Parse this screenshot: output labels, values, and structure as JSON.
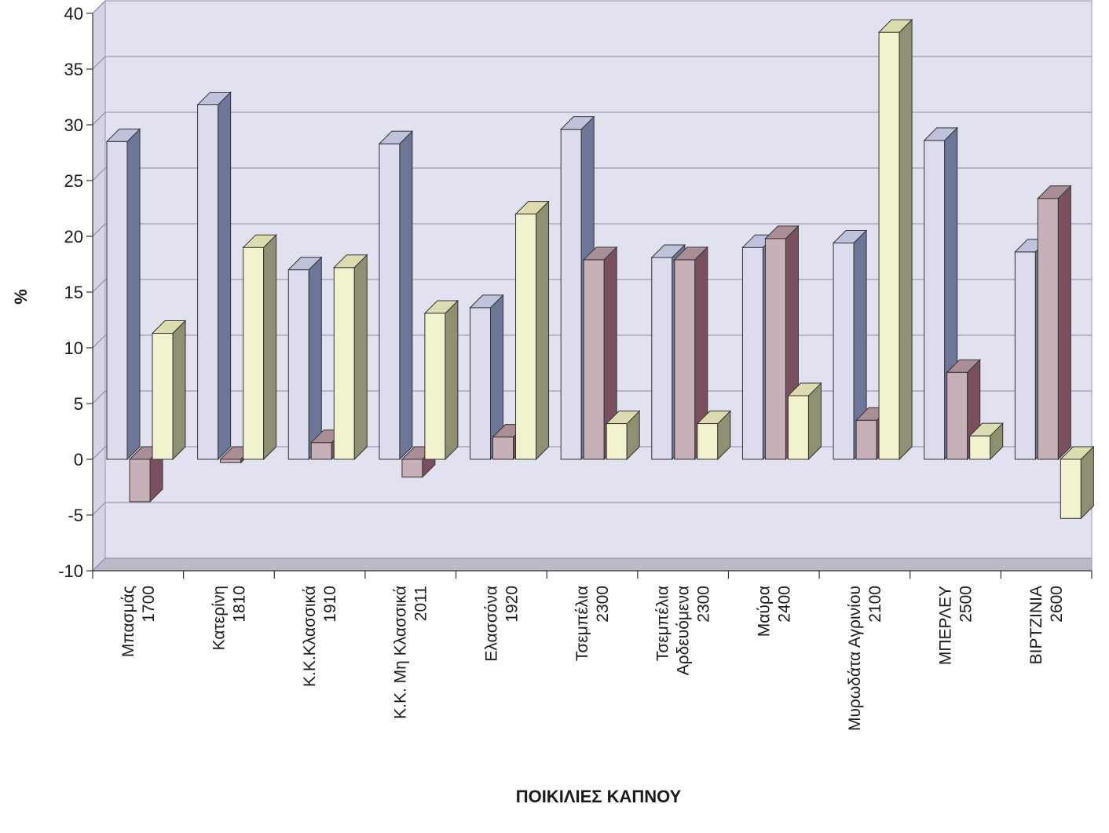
{
  "chart_data": {
    "type": "bar",
    "title": "",
    "xlabel": "ΠΟΙΚΙΛΙΕΣ ΚΑΠΝΟΥ",
    "ylabel": "%",
    "ylim": [
      -10,
      40
    ],
    "yticks": [
      "40",
      "35",
      "30",
      "25",
      "20",
      "15",
      "10",
      "5",
      "0",
      "-5",
      "-10"
    ],
    "grid": true,
    "legend": "none",
    "categories": [
      [
        "Μπασμάς",
        "1700"
      ],
      [
        "Κατερίνη",
        "1810"
      ],
      [
        "Κ.Κ.Κλασσικά",
        "1910"
      ],
      [
        "Κ.Κ. Μη Κλασσικά",
        "2011"
      ],
      [
        "Ελασσόνα",
        "1920"
      ],
      [
        "Τσεμπέλια",
        "2300"
      ],
      [
        "Τσεμπέλια",
        "Αρδευόμενα",
        "2300"
      ],
      [
        "Μαύρα",
        "2400"
      ],
      [
        "Μυρωδάτα Αγρινίου",
        "2100"
      ],
      [
        "ΜΠΕΡΛΕΥ",
        "2500"
      ],
      [
        "ΒΙΡΤΖΙΝΙΑ",
        "2600"
      ]
    ],
    "series": [
      {
        "values": [
          28.5,
          31.8,
          17.0,
          28.3,
          13.6,
          29.6,
          18.1,
          19.0,
          19.4,
          28.6,
          18.6
        ]
      },
      {
        "values": [
          -3.8,
          -0.3,
          1.5,
          -1.6,
          2.0,
          17.9,
          17.9,
          19.8,
          3.5,
          7.8,
          23.4
        ]
      },
      {
        "values": [
          11.3,
          19.0,
          17.2,
          13.1,
          22.0,
          3.2,
          3.2,
          5.7,
          38.3,
          2.1,
          -5.3
        ]
      }
    ],
    "colors": {
      "series_front": [
        "#dcdcee",
        "#c8b0b8",
        "#f2f2cf"
      ],
      "series_side": [
        "#6e7698",
        "#7a5060",
        "#8f8f72"
      ],
      "series_top": [
        "#bfc2dc",
        "#a98e98",
        "#dcdcb0"
      ],
      "wall": "#e1e1ef",
      "floor": "#b9b9c9",
      "grid": "#8a8aa0"
    }
  }
}
